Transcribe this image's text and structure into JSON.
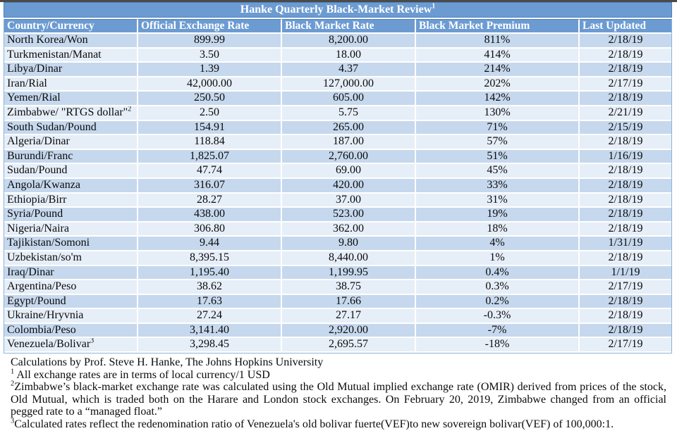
{
  "colors": {
    "header-blue": "#6C9BD2",
    "row-dark": "#C6D8ED",
    "row-light": "#E6EEF8",
    "border-blue": "#4F81BD",
    "frame-blue": "#8FB2DA",
    "top-bar-dark": "#4A4A4A",
    "text-dark": "#0B0B0B"
  },
  "table": {
    "title": {
      "text": "Hanke Quarterly Black-Market Review",
      "superscript": "1"
    },
    "columns": [
      "Country/Currency",
      "Official Exchange Rate",
      "Black Market Rate",
      "Black Market Premium",
      "Last Updated"
    ],
    "rows": [
      {
        "country": "North Korea/Won",
        "official": "899.99",
        "black_market": "8,200.00",
        "premium": "811%",
        "updated": "2/18/19"
      },
      {
        "country": "Turkmenistan/Manat",
        "official": "3.50",
        "black_market": "18.00",
        "premium": "414%",
        "updated": "2/18/19"
      },
      {
        "country": "Libya/Dinar",
        "official": "1.39",
        "black_market": "4.37",
        "premium": "214%",
        "updated": "2/18/19"
      },
      {
        "country": "Iran/Rial",
        "official": "42,000.00",
        "black_market": "127,000.00",
        "premium": "202%",
        "updated": "2/17/19"
      },
      {
        "country": "Yemen/Rial",
        "official": "250.50",
        "black_market": "605.00",
        "premium": "142%",
        "updated": "2/18/19"
      },
      {
        "country": "Zimbabwe/ \"RTGS dollar\"",
        "country_sup": "2",
        "official": "2.50",
        "black_market": "5.75",
        "premium": "130%",
        "updated": "2/21/19"
      },
      {
        "country": "South Sudan/Pound",
        "official": "154.91",
        "black_market": "265.00",
        "premium": "71%",
        "updated": "2/15/19"
      },
      {
        "country": "Algeria/Dinar",
        "official": "118.84",
        "black_market": "187.00",
        "premium": "57%",
        "updated": "2/18/19"
      },
      {
        "country": "Burundi/Franc",
        "official": "1,825.07",
        "black_market": "2,760.00",
        "premium": "51%",
        "updated": "1/16/19"
      },
      {
        "country": "Sudan/Pound",
        "official": "47.74",
        "black_market": "69.00",
        "premium": "45%",
        "updated": "2/18/19"
      },
      {
        "country": "Angola/Kwanza",
        "official": "316.07",
        "black_market": "420.00",
        "premium": "33%",
        "updated": "2/18/19"
      },
      {
        "country": "Ethiopia/Birr",
        "official": "28.27",
        "black_market": "37.00",
        "premium": "31%",
        "updated": "2/18/19"
      },
      {
        "country": "Syria/Pound",
        "official": "438.00",
        "black_market": "523.00",
        "premium": "19%",
        "updated": "2/18/19"
      },
      {
        "country": "Nigeria/Naira",
        "official": "306.80",
        "black_market": "362.00",
        "premium": "18%",
        "updated": "2/18/19"
      },
      {
        "country": "Tajikistan/Somoni",
        "official": "9.44",
        "black_market": "9.80",
        "premium": "4%",
        "updated": "1/31/19"
      },
      {
        "country": "Uzbekistan/so'm",
        "official": "8,395.15",
        "black_market": "8,440.00",
        "premium": "1%",
        "updated": "2/18/19"
      },
      {
        "country": "Iraq/Dinar",
        "official": "1,195.40",
        "black_market": "1,199.95",
        "premium": "0.4%",
        "updated": "1/1/19"
      },
      {
        "country": "Argentina/Peso",
        "official": "38.62",
        "black_market": "38.75",
        "premium": "0.3%",
        "updated": "2/17/19"
      },
      {
        "country": "Egypt/Pound",
        "official": "17.63",
        "black_market": "17.66",
        "premium": "0.2%",
        "updated": "2/18/19"
      },
      {
        "country": "Ukraine/Hryvnia",
        "official": "27.24",
        "black_market": "27.17",
        "premium": "-0.3%",
        "updated": "2/18/19"
      },
      {
        "country": "Colombia/Peso",
        "official": "3,141.40",
        "black_market": "2,920.00",
        "premium": "-7%",
        "updated": "2/18/19"
      },
      {
        "country": "Venezuela/Bolivar",
        "country_sup": "3",
        "official": "3,298.45",
        "black_market": "2,695.57",
        "premium": "-18%",
        "updated": "2/17/19"
      }
    ]
  },
  "footnotes": {
    "credit": "Calculations by Prof. Steve H. Hanke, The Johns Hopkins University",
    "items": [
      {
        "marker": "1",
        "text": " All exchange rates are in terms of local currency/1 USD"
      },
      {
        "marker": "2",
        "text": "Zimbabwe’s black-market exchange rate was calculated using the Old Mutual implied exchange rate (OMIR) derived from prices of the stock, Old Mutual, which is traded both on the Harare and London stock exchanges. On February 20, 2019, Zimbabwe changed from an official pegged rate to a “managed float.”"
      },
      {
        "marker": "3",
        "text": "Calculated rates reflect the redenomination ratio of Venezuela's old bolivar fuerte(VEF)to new sovereign bolivar(VEF) of 100,000:1."
      }
    ]
  }
}
